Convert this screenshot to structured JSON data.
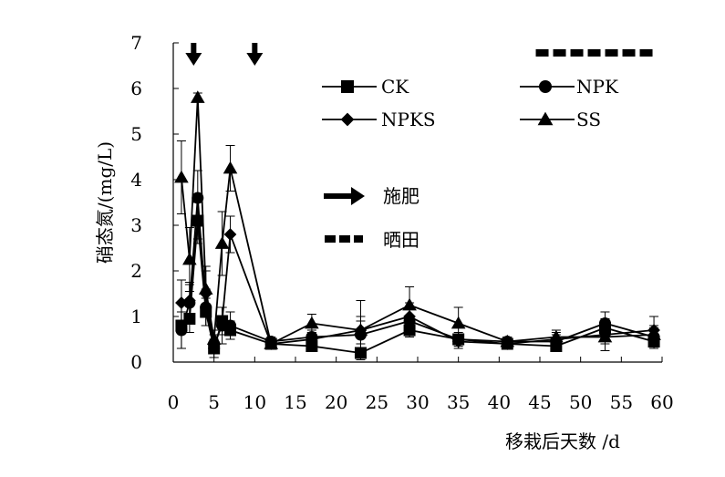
{
  "chart_data": {
    "type": "line",
    "xlabel": "移栽后天数 /d",
    "ylabel": "硝态氮/(mg/L)",
    "xlim": [
      0,
      60
    ],
    "ylim": [
      0,
      7
    ],
    "xticks": [
      0,
      5,
      10,
      15,
      20,
      25,
      30,
      35,
      40,
      45,
      50,
      55,
      60
    ],
    "yticks": [
      0,
      1,
      2,
      3,
      4,
      5,
      6,
      7
    ],
    "grid": false,
    "legend_position": "top-right",
    "annotations": {
      "fertilization_label": "施肥",
      "fertilization_days": [
        2.5,
        10
      ],
      "drying_label": "晒田",
      "drying_range": [
        44.5,
        59
      ]
    },
    "series": [
      {
        "name": "CK",
        "marker": "square",
        "x": [
          1,
          2,
          3,
          4,
          5,
          6,
          7,
          12,
          17,
          23,
          29,
          35,
          41,
          47,
          53,
          59
        ],
        "y": [
          0.8,
          0.95,
          3.1,
          1.1,
          0.3,
          0.9,
          0.7,
          0.4,
          0.35,
          0.2,
          0.7,
          0.5,
          0.4,
          0.35,
          0.75,
          0.45
        ],
        "err": [
          0.5,
          0.3,
          0.4,
          0.3,
          0.2,
          0.3,
          0.2,
          0.1,
          0.1,
          0.05,
          0.15,
          0.1,
          0.1,
          0.1,
          0.2,
          0.15
        ]
      },
      {
        "name": "NPK",
        "marker": "circle",
        "x": [
          1,
          2,
          3,
          4,
          5,
          6,
          7,
          12,
          17,
          23,
          29,
          35,
          41,
          47,
          53,
          59
        ],
        "y": [
          0.7,
          1.3,
          3.6,
          1.2,
          0.4,
          0.8,
          0.8,
          0.45,
          0.55,
          0.6,
          0.9,
          0.5,
          0.45,
          0.45,
          0.85,
          0.55
        ],
        "err": [
          0.4,
          0.4,
          0.6,
          0.4,
          0.2,
          0.4,
          0.3,
          0.1,
          0.15,
          0.3,
          0.3,
          0.15,
          0.1,
          0.15,
          0.25,
          0.2
        ]
      },
      {
        "name": "NPKS",
        "marker": "diamond",
        "x": [
          1,
          2,
          3,
          4,
          5,
          6,
          7,
          12,
          17,
          23,
          29,
          35,
          41,
          47,
          53,
          59
        ],
        "y": [
          1.3,
          1.35,
          3.1,
          1.5,
          0.3,
          0.9,
          2.8,
          0.4,
          0.5,
          0.7,
          1.0,
          0.45,
          0.4,
          0.5,
          0.6,
          0.7
        ],
        "err": [
          0.5,
          0.4,
          0.5,
          0.5,
          0.2,
          0.3,
          0.4,
          0.1,
          0.15,
          0.3,
          0.3,
          0.15,
          0.1,
          0.15,
          0.2,
          0.3
        ]
      },
      {
        "name": "SS",
        "marker": "triangle",
        "x": [
          1,
          2,
          3,
          4,
          5,
          6,
          7,
          12,
          17,
          23,
          29,
          35,
          41,
          47,
          53,
          59
        ],
        "y": [
          4.05,
          2.25,
          5.8,
          1.6,
          0.5,
          2.6,
          4.25,
          0.4,
          0.85,
          0.7,
          1.25,
          0.85,
          0.45,
          0.55,
          0.55,
          0.6
        ],
        "err": [
          0.8,
          0.7,
          0.1,
          0.5,
          0.2,
          0.7,
          0.5,
          0.1,
          0.2,
          0.65,
          0.4,
          0.35,
          0.1,
          0.15,
          0.3,
          0.2
        ]
      }
    ]
  }
}
